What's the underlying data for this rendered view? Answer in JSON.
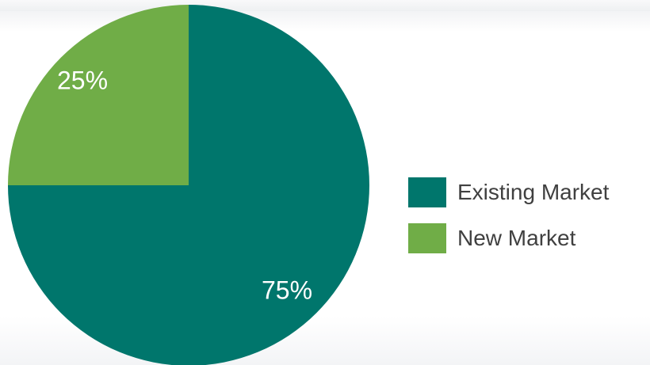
{
  "chart_data": {
    "type": "pie",
    "title": "",
    "slices": [
      {
        "label": "Existing Market",
        "value": 75,
        "value_label": "75%",
        "color": "#00766c"
      },
      {
        "label": "New Market",
        "value": 25,
        "value_label": "25%",
        "color": "#70ad47"
      }
    ],
    "legend_position": "right"
  }
}
